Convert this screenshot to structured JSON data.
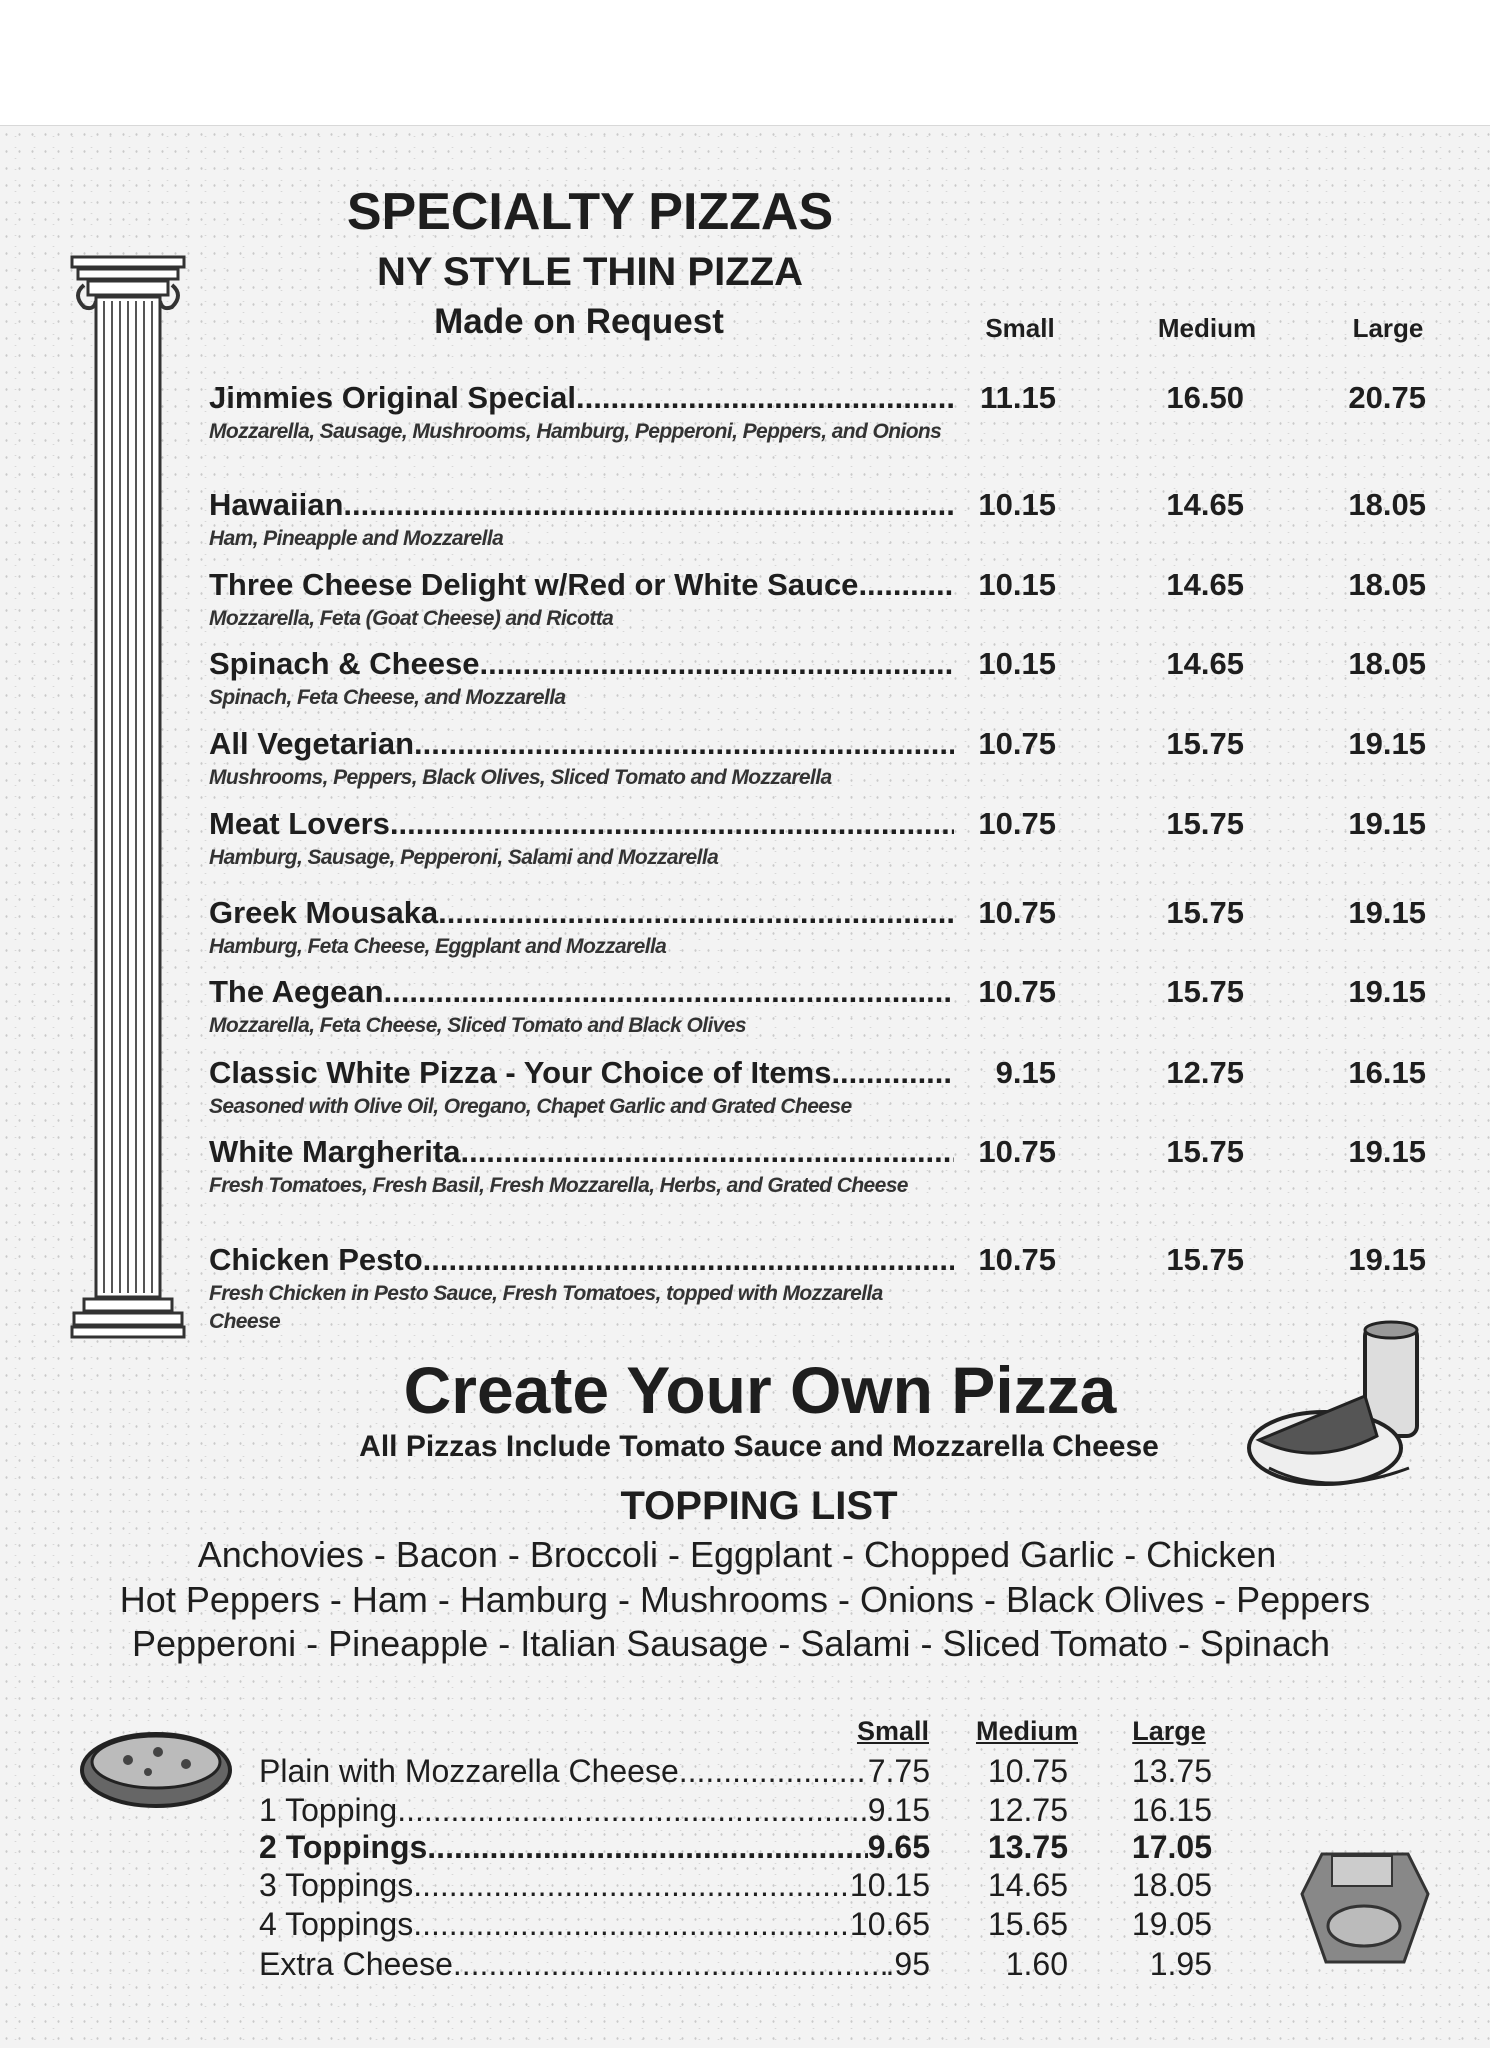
{
  "header": {
    "title": "SPECIALTY PIZZAS",
    "subtitle": "NY STYLE THIN PIZZA",
    "note": "Made on Request",
    "sizes": [
      "Small",
      "Medium",
      "Large"
    ]
  },
  "specialty_items": [
    {
      "name": "Jimmies Original Special",
      "desc": "Mozzarella, Sausage, Mushrooms, Hamburg, Pepperoni, Peppers, and Onions",
      "small": "11.15",
      "medium": "16.50",
      "large": "20.75"
    },
    {
      "name": "Hawaiian",
      "desc": "Ham, Pineapple and Mozzarella",
      "small": "10.15",
      "medium": "14.65",
      "large": "18.05"
    },
    {
      "name": "Three Cheese Delight w/Red or White Sauce",
      "desc": "Mozzarella, Feta (Goat Cheese) and Ricotta",
      "small": "10.15",
      "medium": "14.65",
      "large": "18.05"
    },
    {
      "name": "Spinach & Cheese",
      "desc": "Spinach, Feta Cheese, and Mozzarella",
      "small": "10.15",
      "medium": "14.65",
      "large": "18.05"
    },
    {
      "name": "All Vegetarian",
      "desc": "Mushrooms, Peppers, Black Olives, Sliced Tomato and Mozzarella",
      "small": "10.75",
      "medium": "15.75",
      "large": "19.15"
    },
    {
      "name": "Meat Lovers",
      "desc": "Hamburg, Sausage, Pepperoni, Salami and Mozzarella",
      "small": "10.75",
      "medium": "15.75",
      "large": "19.15"
    },
    {
      "name": "Greek Mousaka",
      "desc": "Hamburg, Feta Cheese, Eggplant and Mozzarella",
      "small": "10.75",
      "medium": "15.75",
      "large": "19.15"
    },
    {
      "name": "The Aegean ",
      "desc": "Mozzarella, Feta Cheese, Sliced Tomato and Black Olives",
      "small": "10.75",
      "medium": "15.75",
      "large": "19.15"
    },
    {
      "name": "Classic White Pizza -  Your Choice of Items",
      "desc": "Seasoned with Olive Oil, Oregano, Chapet Garlic and Grated Cheese",
      "small": "9.15",
      "medium": "12.75",
      "large": "16.15"
    },
    {
      "name": "White Margherita",
      "desc": "Fresh Tomatoes, Fresh Basil, Fresh Mozzarella, Herbs, and Grated Cheese",
      "small": "10.75",
      "medium": "15.75",
      "large": "19.15"
    },
    {
      "name": "Chicken Pesto",
      "desc": "Fresh Chicken in Pesto Sauce, Fresh Tomatoes, topped with Mozzarella Cheese",
      "small": "10.75",
      "medium": "15.75",
      "large": "19.15"
    }
  ],
  "create_your_own": {
    "title": "Create Your Own Pizza",
    "subtitle": "All Pizzas Include Tomato Sauce and Mozzarella Cheese",
    "topping_title": "TOPPING LIST",
    "topping_lines": [
      "Anchovies - Bacon - Broccoli - Eggplant - Chopped Garlic - Chicken",
      "Hot Peppers - Ham - Hamburg - Mushrooms - Onions - Black Olives - Peppers",
      "Pepperoni - Pineapple - Italian Sausage - Salami - Sliced Tomato - Spinach"
    ],
    "sizes": [
      "Small",
      "Medium",
      "Large"
    ],
    "rows": [
      {
        "name": "Plain with Mozzarella Cheese",
        "small": "7.75",
        "medium": "10.75",
        "large": "13.75"
      },
      {
        "name": "1 Topping",
        "small": "9.15",
        "medium": "12.75",
        "large": "16.15"
      },
      {
        "name": "2 Toppings",
        "small": "9.65",
        "medium": "13.75",
        "large": "17.05"
      },
      {
        "name": "3 Toppings",
        "small": "10.15",
        "medium": "14.65",
        "large": "18.05"
      },
      {
        "name": "4 Toppings",
        "small": "10.65",
        "medium": "15.65",
        "large": "19.05"
      },
      {
        "name": "Extra Cheese",
        "small": ".95",
        "medium": "1.60",
        "large": "1.95"
      }
    ]
  },
  "icons": [
    "greek-column-icon",
    "pizza-slice-and-drink-icon",
    "whole-pizza-icon",
    "pizza-emblem-icon"
  ]
}
